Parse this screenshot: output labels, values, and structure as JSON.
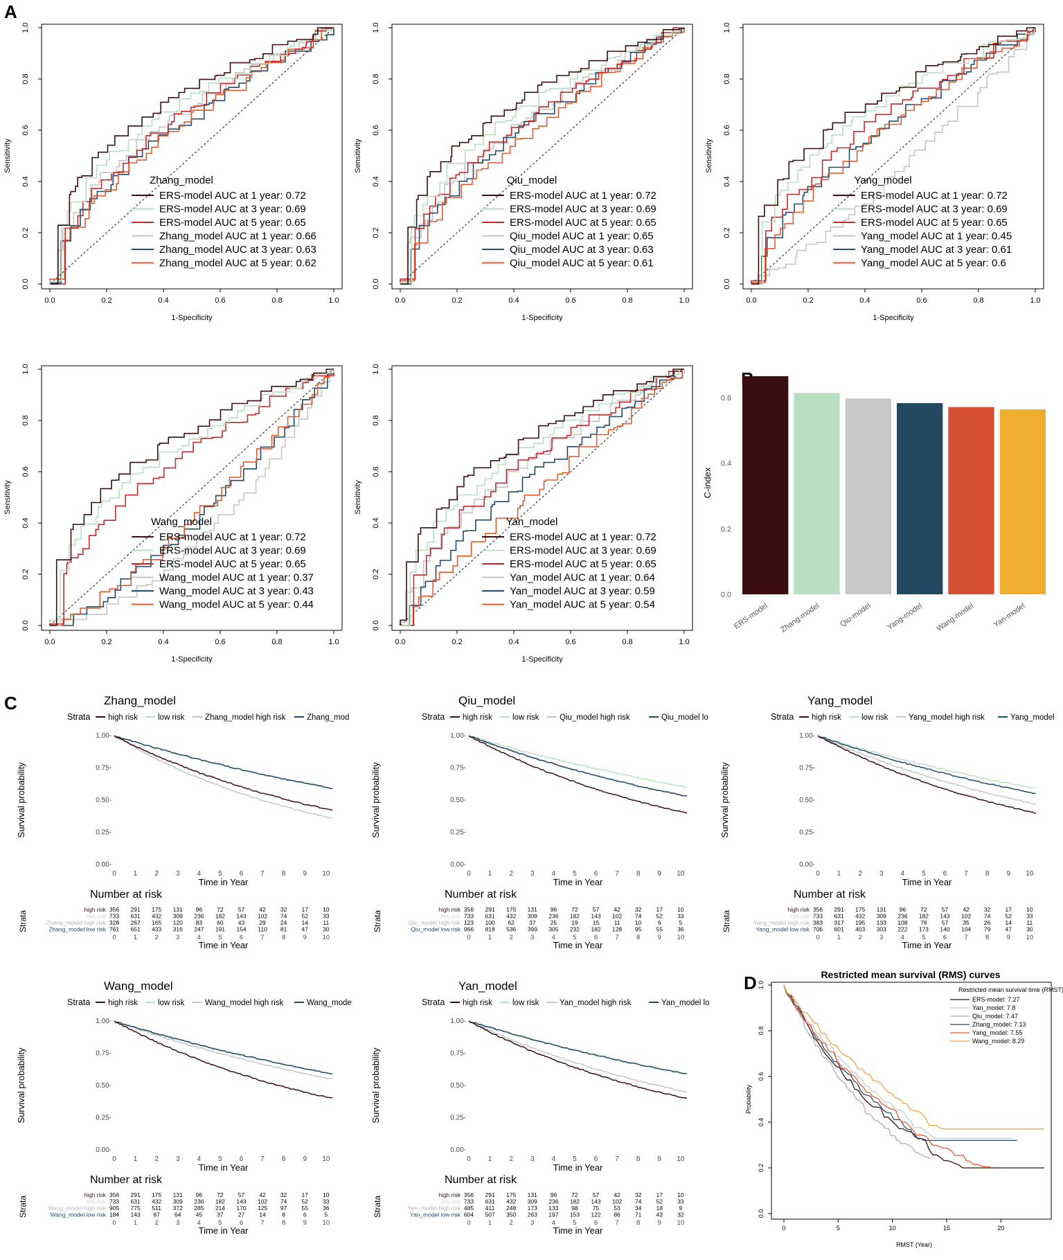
{
  "panel_labels": {
    "a": "A",
    "b": "B",
    "c": "C",
    "d": "D"
  },
  "colors": {
    "ers1": "#3b0d0f",
    "ers3": "#b9dfc0",
    "ers5": "#c8282a",
    "m1": "#c4c4c4",
    "m3": "#1f4a68",
    "m5": "#e8592a",
    "hr": "#3b0d0f",
    "lr": "#b9dfc0",
    "mhr": "#c4c4c4",
    "mlr": "#1f4a68",
    "c_ers": "#3a0d0f",
    "c_zhang": "#b9dfc0",
    "c_qiu": "#c8c8ca",
    "c_yang": "#234862",
    "c_wang": "#d44f33",
    "c_yan": "#efae2e",
    "rms_ers": "#3b0d0f",
    "rms_yan": "#c9c9c9",
    "rms_qiu": "#aaaab8",
    "rms_zhang": "#2a4a6a",
    "rms_yang": "#e8592a",
    "rms_wang": "#f0a040"
  },
  "chart_data": [
    {
      "type": "line",
      "panel": "A",
      "title": "Zhang_model",
      "xlabel": "1-Specificity",
      "ylabel": "Sensitivity",
      "xticks": [
        "0.0",
        "0.2",
        "0.4",
        "0.6",
        "0.8",
        "1.0"
      ],
      "yticks": [
        "0.0",
        "0.2",
        "0.4",
        "0.6",
        "0.8",
        "1.0"
      ],
      "legend": [
        "ERS-model AUC at 1 year: 0.72",
        "ERS-model AUC at 3 year: 0.69",
        "ERS-model AUC at 5 year: 0.65",
        "Zhang_model AUC at 1 year: 0.66",
        "Zhang_model AUC at 3 year: 0.63",
        "Zhang_model AUC at 5 year: 0.62"
      ],
      "auc": [
        0.72,
        0.69,
        0.65,
        0.66,
        0.63,
        0.62
      ]
    },
    {
      "type": "line",
      "panel": "A",
      "title": "Qiu_model",
      "xlabel": "1-Specificity",
      "ylabel": "Sensitivity",
      "xticks": [
        "0.0",
        "0.2",
        "0.4",
        "0.6",
        "0.8",
        "1.0"
      ],
      "yticks": [
        "0.0",
        "0.2",
        "0.4",
        "0.6",
        "0.8",
        "1.0"
      ],
      "legend": [
        "ERS-model AUC at 1 year: 0.72",
        "ERS-model AUC at 3 year: 0.69",
        "ERS-model AUC at 5 year: 0.65",
        "Qiu_model AUC at 1 year: 0.65",
        "Qiu_model AUC at 3 year: 0.63",
        "Qiu_model AUC at 5 year: 0.61"
      ],
      "auc": [
        0.72,
        0.69,
        0.65,
        0.65,
        0.63,
        0.61
      ]
    },
    {
      "type": "line",
      "panel": "A",
      "title": "Yang_model",
      "xlabel": "1-Specificity",
      "ylabel": "Sensitivity",
      "xticks": [
        "0.0",
        "0.2",
        "0.4",
        "0.6",
        "0.8",
        "1.0"
      ],
      "yticks": [
        "0.0",
        "0.2",
        "0.4",
        "0.6",
        "0.8",
        "1.0"
      ],
      "legend": [
        "ERS-model AUC at 1 year: 0.72",
        "ERS-model AUC at 3 year: 0.69",
        "ERS-model AUC at 5 year: 0.65",
        "Yang_model AUC at 1 year: 0.45",
        "Yang_model AUC at 3 year: 0.61",
        "Yang_model AUC at 5 year: 0.6"
      ],
      "auc": [
        0.72,
        0.69,
        0.65,
        0.45,
        0.61,
        0.6
      ]
    },
    {
      "type": "line",
      "panel": "A",
      "title": "Wang_model",
      "xlabel": "1-Specificity",
      "ylabel": "Sensitivity",
      "xticks": [
        "0.0",
        "0.2",
        "0.4",
        "0.6",
        "0.8",
        "1.0"
      ],
      "yticks": [
        "0.0",
        "0.2",
        "0.4",
        "0.6",
        "0.8",
        "1.0"
      ],
      "legend": [
        "ERS-model AUC at 1 year: 0.72",
        "ERS-model AUC at 3 year: 0.69",
        "ERS-model AUC at 5 year: 0.65",
        "Wang_model AUC at 1 year: 0.37",
        "Wang_model AUC at 3 year: 0.43",
        "Wang_model AUC at 5 year: 0.44"
      ],
      "auc": [
        0.72,
        0.69,
        0.65,
        0.37,
        0.43,
        0.44
      ]
    },
    {
      "type": "line",
      "panel": "A",
      "title": "Yan_model",
      "xlabel": "1-Specificity",
      "ylabel": "Sensitivity",
      "xticks": [
        "0.0",
        "0.2",
        "0.4",
        "0.6",
        "0.8",
        "1.0"
      ],
      "yticks": [
        "0.0",
        "0.2",
        "0.4",
        "0.6",
        "0.8",
        "1.0"
      ],
      "legend": [
        "ERS-model AUC at 1 year: 0.72",
        "ERS-model AUC at 3 year: 0.69",
        "ERS-model AUC at 5 year: 0.65",
        "Yan_model AUC at 1 year: 0.64",
        "Yan_model AUC at 3 year: 0.59",
        "Yan_model AUC at 5 year: 0.54"
      ],
      "auc": [
        0.72,
        0.69,
        0.65,
        0.64,
        0.59,
        0.54
      ]
    },
    {
      "type": "bar",
      "panel": "B",
      "categories": [
        "ERS-model",
        "Zhang-model",
        "Qiu-model",
        "Yang-model",
        "Wang-model",
        "Yan-model"
      ],
      "values": [
        0.665,
        0.614,
        0.597,
        0.583,
        0.571,
        0.564
      ],
      "ylabel": "C-index",
      "ylim": [
        0,
        0.68
      ],
      "yticks": [
        "0.0",
        "0.2",
        "0.4",
        "0.6"
      ]
    },
    {
      "type": "line",
      "panel": "C",
      "title": "Zhang_model",
      "strata_label": "Strata",
      "legend": [
        "high risk",
        "low risk",
        "Zhang_model high risk",
        "Zhang_mod"
      ],
      "xlabel": "Time in Year",
      "ylabel": "Survival probability",
      "xticks": [
        "0",
        "1",
        "2",
        "3",
        "4",
        "5",
        "6",
        "7",
        "8",
        "9",
        "10"
      ],
      "yticks": [
        "0.00-",
        "0.25-",
        "0.50-",
        "0.75-",
        "1.00-"
      ],
      "risk_title": "Number at risk",
      "risk_rows": [
        {
          "label": "high risk",
          "values": [
            "356",
            "291",
            "175",
            "131",
            "96",
            "72",
            "57",
            "42",
            "32",
            "17",
            "10"
          ]
        },
        {
          "label": "low risk",
          "values": [
            "733",
            "631",
            "432",
            "309",
            "236",
            "182",
            "143",
            "102",
            "74",
            "52",
            "33"
          ]
        },
        {
          "label": "Zhang_model high risk",
          "values": [
            "328",
            "267",
            "165",
            "120",
            "83",
            "60",
            "43",
            "29",
            "24",
            "14",
            "11"
          ]
        },
        {
          "label": "Zhang_model low risk",
          "values": [
            "761",
            "651",
            "433",
            "316",
            "247",
            "191",
            "154",
            "110",
            "81",
            "47",
            "30"
          ]
        }
      ],
      "ends": [
        0.43,
        0.6,
        0.37,
        0.6
      ]
    },
    {
      "type": "line",
      "panel": "C",
      "title": "Qiu_model",
      "strata_label": "Strata",
      "legend": [
        "high risk",
        "low risk",
        "Qiu_model high risk",
        "Qiu_model lo"
      ],
      "xlabel": "Time in Year",
      "ylabel": "Survival probability",
      "xticks": [
        "0",
        "1",
        "2",
        "3",
        "4",
        "5",
        "6",
        "7",
        "8",
        "9",
        "10"
      ],
      "yticks": [
        "0.00-",
        "0.25-",
        "0.50-",
        "0.75-",
        "1.00-"
      ],
      "risk_title": "Number at risk",
      "risk_rows": [
        {
          "label": "high risk",
          "values": [
            "356",
            "291",
            "175",
            "131",
            "96",
            "72",
            "57",
            "42",
            "32",
            "17",
            "10"
          ]
        },
        {
          "label": "low risk",
          "values": [
            "733",
            "631",
            "432",
            "309",
            "236",
            "182",
            "143",
            "102",
            "74",
            "52",
            "33"
          ]
        },
        {
          "label": "Qiu_model high risk",
          "values": [
            "123",
            "100",
            "62",
            "37",
            "25",
            "19",
            "15",
            "11",
            "10",
            "6",
            "5"
          ]
        },
        {
          "label": "Qiu_model low risk",
          "values": [
            "966",
            "818",
            "536",
            "399",
            "305",
            "232",
            "182",
            "128",
            "95",
            "55",
            "36"
          ]
        }
      ],
      "ends": [
        0.41,
        0.61,
        0.54,
        0.54
      ]
    },
    {
      "type": "line",
      "panel": "C",
      "title": "Yang_model",
      "strata_label": "Strata",
      "legend": [
        "high risk",
        "low risk",
        "Yang_model high risk",
        "Yang_model"
      ],
      "xlabel": "Time in Year",
      "ylabel": "Survival probability",
      "xticks": [
        "0",
        "1",
        "2",
        "3",
        "4",
        "5",
        "6",
        "7",
        "8",
        "9",
        "10"
      ],
      "yticks": [
        "0.00-",
        "0.25-",
        "0.50-",
        "0.75-",
        "1.00-"
      ],
      "risk_title": "Number at risk",
      "risk_rows": [
        {
          "label": "high risk",
          "values": [
            "356",
            "291",
            "175",
            "131",
            "96",
            "72",
            "57",
            "42",
            "32",
            "17",
            "10"
          ]
        },
        {
          "label": "low risk",
          "values": [
            "733",
            "631",
            "432",
            "309",
            "236",
            "182",
            "143",
            "102",
            "74",
            "52",
            "33"
          ]
        },
        {
          "label": "Yang_model high risk",
          "values": [
            "383",
            "317",
            "195",
            "133",
            "108",
            "78",
            "57",
            "35",
            "26",
            "14",
            "11"
          ]
        },
        {
          "label": "Yang_model low risk",
          "values": [
            "706",
            "601",
            "403",
            "303",
            "222",
            "173",
            "140",
            "104",
            "79",
            "47",
            "30"
          ]
        }
      ],
      "ends": [
        0.41,
        0.6,
        0.48,
        0.56
      ]
    },
    {
      "type": "line",
      "panel": "C",
      "title": "Wang_model",
      "strata_label": "Strata",
      "legend": [
        "high risk",
        "low risk",
        "Wang_model high risk",
        "Wang_mode"
      ],
      "xlabel": "Time in Year",
      "ylabel": "Survival probability",
      "xticks": [
        "0",
        "1",
        "2",
        "3",
        "4",
        "5",
        "6",
        "7",
        "8",
        "9",
        "10"
      ],
      "yticks": [
        "0.00-",
        "0.25-",
        "0.50-",
        "0.75-",
        "1.00-"
      ],
      "risk_title": "Number at risk",
      "risk_rows": [
        {
          "label": "high risk",
          "values": [
            "356",
            "291",
            "175",
            "131",
            "96",
            "72",
            "57",
            "42",
            "32",
            "17",
            "10"
          ]
        },
        {
          "label": "low risk",
          "values": [
            "733",
            "631",
            "432",
            "309",
            "236",
            "182",
            "143",
            "102",
            "74",
            "52",
            "33"
          ]
        },
        {
          "label": "Wang_model high risk",
          "values": [
            "905",
            "775",
            "511",
            "372",
            "285",
            "214",
            "170",
            "125",
            "97",
            "55",
            "36"
          ]
        },
        {
          "label": "Wang_model low risk",
          "values": [
            "184",
            "143",
            "87",
            "64",
            "45",
            "37",
            "27",
            "14",
            "8",
            "6",
            "5"
          ]
        }
      ],
      "ends": [
        0.41,
        0.6,
        0.56,
        0.6
      ]
    },
    {
      "type": "line",
      "panel": "C",
      "title": "Yan_model",
      "strata_label": "Strata",
      "legend": [
        "high risk",
        "low risk",
        "Yan_model high risk",
        "Yan_model lo"
      ],
      "xlabel": "Time in Year",
      "ylabel": "Survival probability",
      "xticks": [
        "0",
        "1",
        "2",
        "3",
        "4",
        "5",
        "6",
        "7",
        "8",
        "9",
        "10"
      ],
      "yticks": [
        "0.00-",
        "0.25-",
        "0.50-",
        "0.75-",
        "1.00-"
      ],
      "risk_title": "Number at risk",
      "risk_rows": [
        {
          "label": "high risk",
          "values": [
            "356",
            "291",
            "175",
            "131",
            "96",
            "72",
            "57",
            "42",
            "32",
            "17",
            "10"
          ]
        },
        {
          "label": "low risk",
          "values": [
            "733",
            "631",
            "432",
            "309",
            "236",
            "182",
            "143",
            "102",
            "74",
            "52",
            "33"
          ]
        },
        {
          "label": "Yan_model high risk",
          "values": [
            "485",
            "411",
            "248",
            "173",
            "133",
            "98",
            "75",
            "53",
            "34",
            "18",
            "9"
          ]
        },
        {
          "label": "Yan_model low risk",
          "values": [
            "604",
            "507",
            "350",
            "263",
            "197",
            "153",
            "122",
            "86",
            "71",
            "43",
            "32"
          ]
        }
      ],
      "ends": [
        0.41,
        0.6,
        0.46,
        0.6
      ]
    },
    {
      "type": "line",
      "panel": "D",
      "title": "Restricted mean survival (RMS) curves",
      "legend_title": "Restricted mean survival time (RMST)",
      "legend": [
        "ERS-model: 7.27",
        "Yan_model: 7.8",
        "Qiu_model: 7.47",
        "Zhang_model: 7.13",
        "Yang_model: 7.55",
        "Wang_model: 8.29"
      ],
      "xlabel": "RMST (Year)",
      "ylabel": "Probability",
      "xticks": [
        "0",
        "5",
        "10",
        "15",
        "20"
      ],
      "yticks": [
        "0.0",
        "0.2",
        "0.4",
        "0.6",
        "0.8",
        "1.0"
      ],
      "xlim": [
        0,
        24
      ],
      "ylim": [
        0,
        1
      ]
    }
  ]
}
